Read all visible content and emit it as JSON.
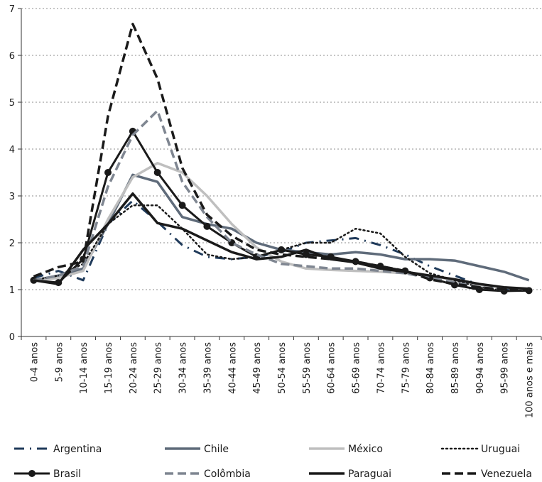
{
  "chart_data": {
    "type": "line",
    "title": "",
    "xlabel": "",
    "ylabel": "",
    "ylim": [
      0,
      7
    ],
    "yticks": [
      0,
      1,
      2,
      3,
      4,
      5,
      6,
      7
    ],
    "grid": "horizontal dotted",
    "legend_position": "bottom",
    "categories": [
      "0-4 anos",
      "5-9 anos",
      "10-14 anos",
      "15-19 anos",
      "20-24 anos",
      "25-29 anos",
      "30-34 anos",
      "35-39 anos",
      "40-44 anos",
      "45-49 anos",
      "50-54 anos",
      "55-59 anos",
      "60-64 anos",
      "65-69 anos",
      "70-74 anos",
      "75-79 anos",
      "80-84 anos",
      "85-89 anos",
      "90-94 anos",
      "95-99 anos",
      "100 anos e mais"
    ],
    "series": [
      {
        "name": "Argentina",
        "color": "#1f3a5a",
        "style": "dashdot",
        "width": 3,
        "marker": false,
        "values": [
          1.25,
          1.4,
          1.2,
          2.4,
          2.9,
          2.45,
          1.95,
          1.7,
          1.65,
          1.7,
          1.8,
          2.0,
          2.05,
          2.1,
          1.95,
          1.75,
          1.5,
          1.3,
          1.1,
          1.02,
          1.0
        ]
      },
      {
        "name": "Chile",
        "color": "#5f6b7a",
        "style": "solid",
        "width": 3.5,
        "marker": false,
        "values": [
          1.2,
          1.3,
          1.45,
          2.4,
          3.45,
          3.3,
          2.55,
          2.4,
          2.3,
          2.0,
          1.85,
          1.8,
          1.75,
          1.8,
          1.75,
          1.65,
          1.65,
          1.62,
          1.5,
          1.38,
          1.2
        ]
      },
      {
        "name": "México",
        "color": "#bfbfbf",
        "style": "solid",
        "width": 3.5,
        "marker": false,
        "values": [
          1.2,
          1.25,
          1.4,
          2.5,
          3.4,
          3.7,
          3.5,
          3.0,
          2.4,
          1.9,
          1.6,
          1.45,
          1.42,
          1.4,
          1.38,
          1.35,
          1.3,
          1.2,
          1.1,
          1.05,
          1.0
        ]
      },
      {
        "name": "Uruguai",
        "color": "#1a1a1a",
        "style": "dotted",
        "width": 2.5,
        "marker": false,
        "values": [
          1.2,
          1.3,
          1.55,
          2.4,
          2.8,
          2.8,
          2.3,
          1.75,
          1.65,
          1.7,
          1.85,
          2.0,
          2.0,
          2.3,
          2.2,
          1.7,
          1.35,
          1.2,
          1.05,
          0.98,
          0.97
        ]
      },
      {
        "name": "Brasil",
        "color": "#1a1a1a",
        "style": "solid",
        "width": 3,
        "marker": true,
        "values": [
          1.2,
          1.15,
          1.65,
          3.5,
          4.38,
          3.5,
          2.8,
          2.35,
          2.0,
          1.7,
          1.85,
          1.75,
          1.7,
          1.6,
          1.5,
          1.4,
          1.25,
          1.1,
          1.0,
          0.97,
          0.98
        ]
      },
      {
        "name": "Colômbia",
        "color": "#7f8691",
        "style": "dashed",
        "width": 3.5,
        "marker": false,
        "values": [
          1.2,
          1.3,
          1.5,
          3.2,
          4.3,
          4.82,
          3.3,
          2.55,
          2.0,
          1.75,
          1.55,
          1.5,
          1.45,
          1.45,
          1.4,
          1.35,
          1.25,
          1.15,
          1.05,
          1.0,
          1.0
        ]
      },
      {
        "name": "Paraguai",
        "color": "#1a1a1a",
        "style": "solid",
        "width": 3.5,
        "marker": false,
        "values": [
          1.2,
          1.12,
          1.85,
          2.4,
          3.05,
          2.42,
          2.3,
          2.05,
          1.8,
          1.65,
          1.7,
          1.85,
          1.65,
          1.58,
          1.45,
          1.38,
          1.3,
          1.22,
          1.12,
          1.05,
          1.02
        ]
      },
      {
        "name": "Venezuela",
        "color": "#1a1a1a",
        "style": "dashed",
        "width": 3.5,
        "marker": false,
        "values": [
          1.28,
          1.48,
          1.6,
          4.7,
          6.67,
          5.5,
          3.6,
          2.6,
          2.15,
          1.85,
          1.75,
          1.7,
          1.65,
          1.6,
          1.5,
          1.4,
          1.22,
          1.12,
          1.05,
          1.0,
          0.98
        ]
      }
    ]
  }
}
